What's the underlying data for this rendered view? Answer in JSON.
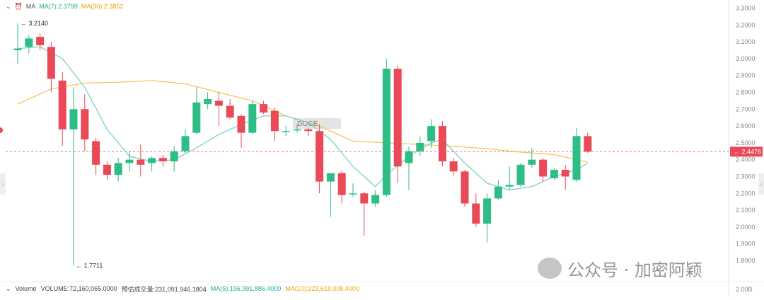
{
  "header": {
    "indicator_label": "MA",
    "ma7_label": "MA(7):2.3799",
    "ma30_label": "MA(30):2.3852"
  },
  "footer": {
    "volume_title": "Volume",
    "volume_value": "VOLUME:72,160,065.0000",
    "estimate_value": "预估成交量:231,091,946.1804",
    "ma5_value": "MA(5):196,991,886.4000",
    "ma10_value": "MA(10):223,618,008.4000"
  },
  "watermark": {
    "text": "公众号 · 加密阿颖"
  },
  "symbol_label": "DOGE",
  "colors": {
    "up": "#2ebd85",
    "down": "#ea4a58",
    "ma7": "#6fd0bb",
    "ma30": "#f2c04f",
    "price_tag": "#ea4a58"
  },
  "chart_data": {
    "type": "candlestick",
    "title": "",
    "ylim": [
      1.68,
      3.34
    ],
    "y_ticks": [
      "3.3000",
      "3.2000",
      "3.1000",
      "3.0000",
      "2.9000",
      "2.8000",
      "2.7000",
      "2.6000",
      "2.5000",
      "2.4000",
      "2.3000",
      "2.2000",
      "2.1000",
      "2.0000",
      "1.9000",
      "1.8000"
    ],
    "current_price": "2.4476",
    "high_marker": "← 3.2140",
    "low_marker": "← 1.7711",
    "volume_axis_label": "2.00B",
    "candles": [
      {
        "o": 3.05,
        "h": 3.21,
        "l": 2.97,
        "c": 3.06
      },
      {
        "o": 3.07,
        "h": 3.14,
        "l": 3.03,
        "c": 3.12
      },
      {
        "o": 3.13,
        "h": 3.15,
        "l": 3.05,
        "c": 3.08
      },
      {
        "o": 3.07,
        "h": 3.1,
        "l": 2.8,
        "c": 2.88
      },
      {
        "o": 2.87,
        "h": 2.92,
        "l": 2.48,
        "c": 2.58
      },
      {
        "o": 2.58,
        "h": 2.83,
        "l": 1.7711,
        "c": 2.7
      },
      {
        "o": 2.7,
        "h": 2.79,
        "l": 2.45,
        "c": 2.52
      },
      {
        "o": 2.51,
        "h": 2.53,
        "l": 2.31,
        "c": 2.37
      },
      {
        "o": 2.37,
        "h": 2.39,
        "l": 2.28,
        "c": 2.31
      },
      {
        "o": 2.31,
        "h": 2.41,
        "l": 2.27,
        "c": 2.38
      },
      {
        "o": 2.38,
        "h": 2.45,
        "l": 2.33,
        "c": 2.4
      },
      {
        "o": 2.4,
        "h": 2.49,
        "l": 2.3,
        "c": 2.37
      },
      {
        "o": 2.38,
        "h": 2.42,
        "l": 2.33,
        "c": 2.41
      },
      {
        "o": 2.41,
        "h": 2.43,
        "l": 2.36,
        "c": 2.39
      },
      {
        "o": 2.39,
        "h": 2.48,
        "l": 2.33,
        "c": 2.45
      },
      {
        "o": 2.45,
        "h": 2.58,
        "l": 2.44,
        "c": 2.54
      },
      {
        "o": 2.56,
        "h": 2.83,
        "l": 2.55,
        "c": 2.74
      },
      {
        "o": 2.73,
        "h": 2.8,
        "l": 2.7,
        "c": 2.76
      },
      {
        "o": 2.75,
        "h": 2.8,
        "l": 2.6,
        "c": 2.72
      },
      {
        "o": 2.72,
        "h": 2.76,
        "l": 2.64,
        "c": 2.65
      },
      {
        "o": 2.66,
        "h": 2.67,
        "l": 2.47,
        "c": 2.56
      },
      {
        "o": 2.56,
        "h": 2.75,
        "l": 2.55,
        "c": 2.73
      },
      {
        "o": 2.73,
        "h": 2.75,
        "l": 2.67,
        "c": 2.68
      },
      {
        "o": 2.69,
        "h": 2.71,
        "l": 2.51,
        "c": 2.57
      },
      {
        "o": 2.57,
        "h": 2.6,
        "l": 2.54,
        "c": 2.57
      },
      {
        "o": 2.58,
        "h": 2.61,
        "l": 2.56,
        "c": 2.58
      },
      {
        "o": 2.58,
        "h": 2.59,
        "l": 2.54,
        "c": 2.57
      },
      {
        "o": 2.57,
        "h": 2.61,
        "l": 2.2,
        "c": 2.27
      },
      {
        "o": 2.27,
        "h": 2.32,
        "l": 2.06,
        "c": 2.32
      },
      {
        "o": 2.32,
        "h": 2.33,
        "l": 2.14,
        "c": 2.19
      },
      {
        "o": 2.2,
        "h": 2.26,
        "l": 2.18,
        "c": 2.2
      },
      {
        "o": 2.2,
        "h": 2.21,
        "l": 1.95,
        "c": 2.14
      },
      {
        "o": 2.14,
        "h": 2.22,
        "l": 2.12,
        "c": 2.19
      },
      {
        "o": 2.19,
        "h": 3.0,
        "l": 2.18,
        "c": 2.94
      },
      {
        "o": 2.94,
        "h": 2.96,
        "l": 2.26,
        "c": 2.36
      },
      {
        "o": 2.38,
        "h": 2.48,
        "l": 2.22,
        "c": 2.45
      },
      {
        "o": 2.45,
        "h": 2.54,
        "l": 2.42,
        "c": 2.5
      },
      {
        "o": 2.51,
        "h": 2.64,
        "l": 2.47,
        "c": 2.6
      },
      {
        "o": 2.6,
        "h": 2.63,
        "l": 2.36,
        "c": 2.39
      },
      {
        "o": 2.39,
        "h": 2.41,
        "l": 2.3,
        "c": 2.33
      },
      {
        "o": 2.33,
        "h": 2.34,
        "l": 2.12,
        "c": 2.14
      },
      {
        "o": 2.14,
        "h": 2.2,
        "l": 2.0,
        "c": 2.02
      },
      {
        "o": 2.02,
        "h": 2.2,
        "l": 1.91,
        "c": 2.17
      },
      {
        "o": 2.17,
        "h": 2.28,
        "l": 2.16,
        "c": 2.24
      },
      {
        "o": 2.24,
        "h": 2.36,
        "l": 2.22,
        "c": 2.25
      },
      {
        "o": 2.25,
        "h": 2.38,
        "l": 2.24,
        "c": 2.37
      },
      {
        "o": 2.37,
        "h": 2.47,
        "l": 2.35,
        "c": 2.4
      },
      {
        "o": 2.4,
        "h": 2.41,
        "l": 2.27,
        "c": 2.3
      },
      {
        "o": 2.29,
        "h": 2.35,
        "l": 2.28,
        "c": 2.34
      },
      {
        "o": 2.34,
        "h": 2.37,
        "l": 2.22,
        "c": 2.3
      },
      {
        "o": 2.28,
        "h": 2.59,
        "l": 2.27,
        "c": 2.54
      },
      {
        "o": 2.54,
        "h": 2.56,
        "l": 2.44,
        "c": 2.4476
      }
    ],
    "ma7": [
      {
        "x": 0,
        "y": 3.06
      },
      {
        "x": 2,
        "y": 3.07
      },
      {
        "x": 4,
        "y": 3.0
      },
      {
        "x": 6,
        "y": 2.83
      },
      {
        "x": 8,
        "y": 2.58
      },
      {
        "x": 10,
        "y": 2.42
      },
      {
        "x": 12,
        "y": 2.39
      },
      {
        "x": 14,
        "y": 2.4
      },
      {
        "x": 16,
        "y": 2.47
      },
      {
        "x": 18,
        "y": 2.55
      },
      {
        "x": 20,
        "y": 2.61
      },
      {
        "x": 22,
        "y": 2.66
      },
      {
        "x": 24,
        "y": 2.66
      },
      {
        "x": 26,
        "y": 2.62
      },
      {
        "x": 28,
        "y": 2.52
      },
      {
        "x": 30,
        "y": 2.36
      },
      {
        "x": 32,
        "y": 2.24
      },
      {
        "x": 33,
        "y": 2.31
      },
      {
        "x": 35,
        "y": 2.42
      },
      {
        "x": 37,
        "y": 2.5
      },
      {
        "x": 38,
        "y": 2.52
      },
      {
        "x": 40,
        "y": 2.38
      },
      {
        "x": 42,
        "y": 2.26
      },
      {
        "x": 44,
        "y": 2.22
      },
      {
        "x": 46,
        "y": 2.24
      },
      {
        "x": 48,
        "y": 2.3
      },
      {
        "x": 50,
        "y": 2.34
      },
      {
        "x": 51,
        "y": 2.38
      }
    ],
    "ma30": [
      {
        "x": 0,
        "y": 2.73
      },
      {
        "x": 3,
        "y": 2.82
      },
      {
        "x": 6,
        "y": 2.855
      },
      {
        "x": 9,
        "y": 2.86
      },
      {
        "x": 12,
        "y": 2.87
      },
      {
        "x": 15,
        "y": 2.85
      },
      {
        "x": 18,
        "y": 2.8
      },
      {
        "x": 21,
        "y": 2.75
      },
      {
        "x": 24,
        "y": 2.66
      },
      {
        "x": 27,
        "y": 2.6
      },
      {
        "x": 30,
        "y": 2.51
      },
      {
        "x": 33,
        "y": 2.5
      },
      {
        "x": 36,
        "y": 2.49
      },
      {
        "x": 39,
        "y": 2.48
      },
      {
        "x": 42,
        "y": 2.465
      },
      {
        "x": 45,
        "y": 2.445
      },
      {
        "x": 48,
        "y": 2.43
      },
      {
        "x": 50,
        "y": 2.4
      },
      {
        "x": 51,
        "y": 2.3852
      }
    ]
  }
}
